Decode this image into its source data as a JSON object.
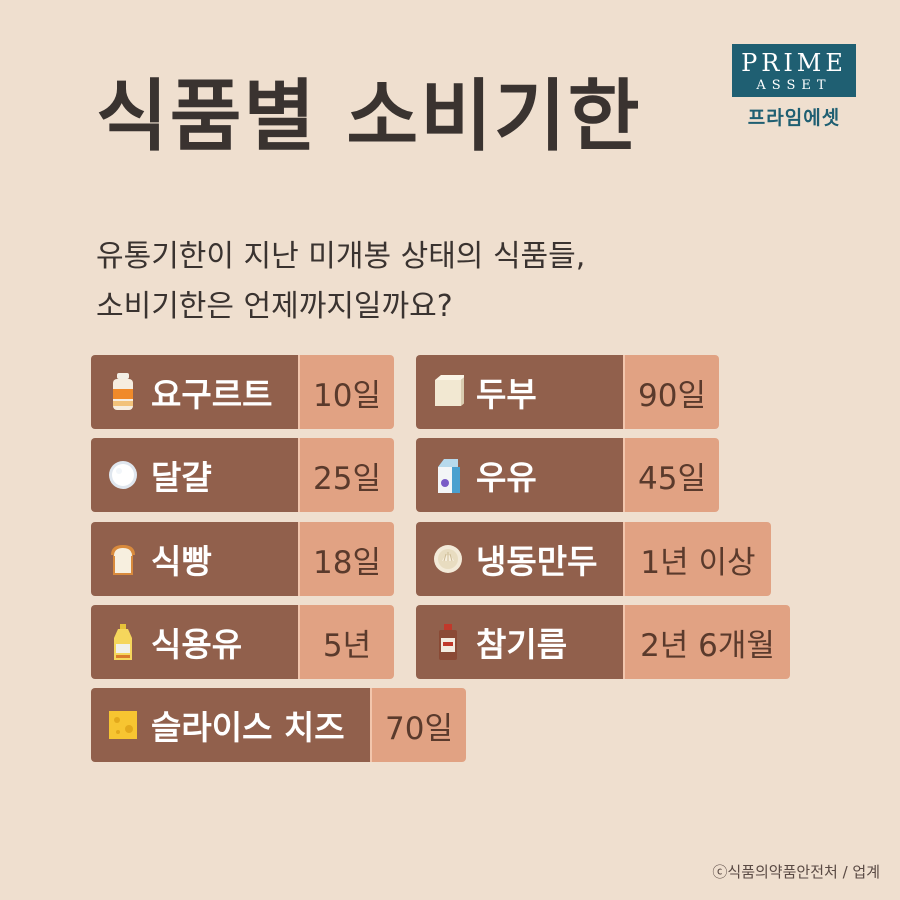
{
  "title": "식품별 소비기한",
  "logo": {
    "line1": "PRIME",
    "line2": "ASSET",
    "korean": "프라임에셋"
  },
  "subtitle": {
    "line1": "유통기한이 지난 미개봉 상태의 식품들,",
    "line2": "소비기한은 언제까지일까요?"
  },
  "items": [
    {
      "name": "요구르트",
      "value": "10일",
      "icon": "yogurt-bottle-icon"
    },
    {
      "name": "두부",
      "value": "90일",
      "icon": "tofu-icon"
    },
    {
      "name": "달걀",
      "value": "25일",
      "icon": "egg-icon"
    },
    {
      "name": "우유",
      "value": "45일",
      "icon": "milk-carton-icon"
    },
    {
      "name": "식빵",
      "value": "18일",
      "icon": "bread-icon"
    },
    {
      "name": "냉동만두",
      "value": "1년 이상",
      "icon": "dumpling-icon"
    },
    {
      "name": "식용유",
      "value": "5년",
      "icon": "oil-bottle-icon"
    },
    {
      "name": "참기름",
      "value": "2년 6개월",
      "icon": "sesame-oil-icon"
    },
    {
      "name": "슬라이스 치즈",
      "value": "70일",
      "icon": "cheese-icon"
    }
  ],
  "source": "ⓒ식품의약품안전처 / 업계",
  "colors": {
    "background": "#efdfcf",
    "label": "#91604c",
    "value": "#e1a283",
    "brand": "#1f5f72"
  }
}
